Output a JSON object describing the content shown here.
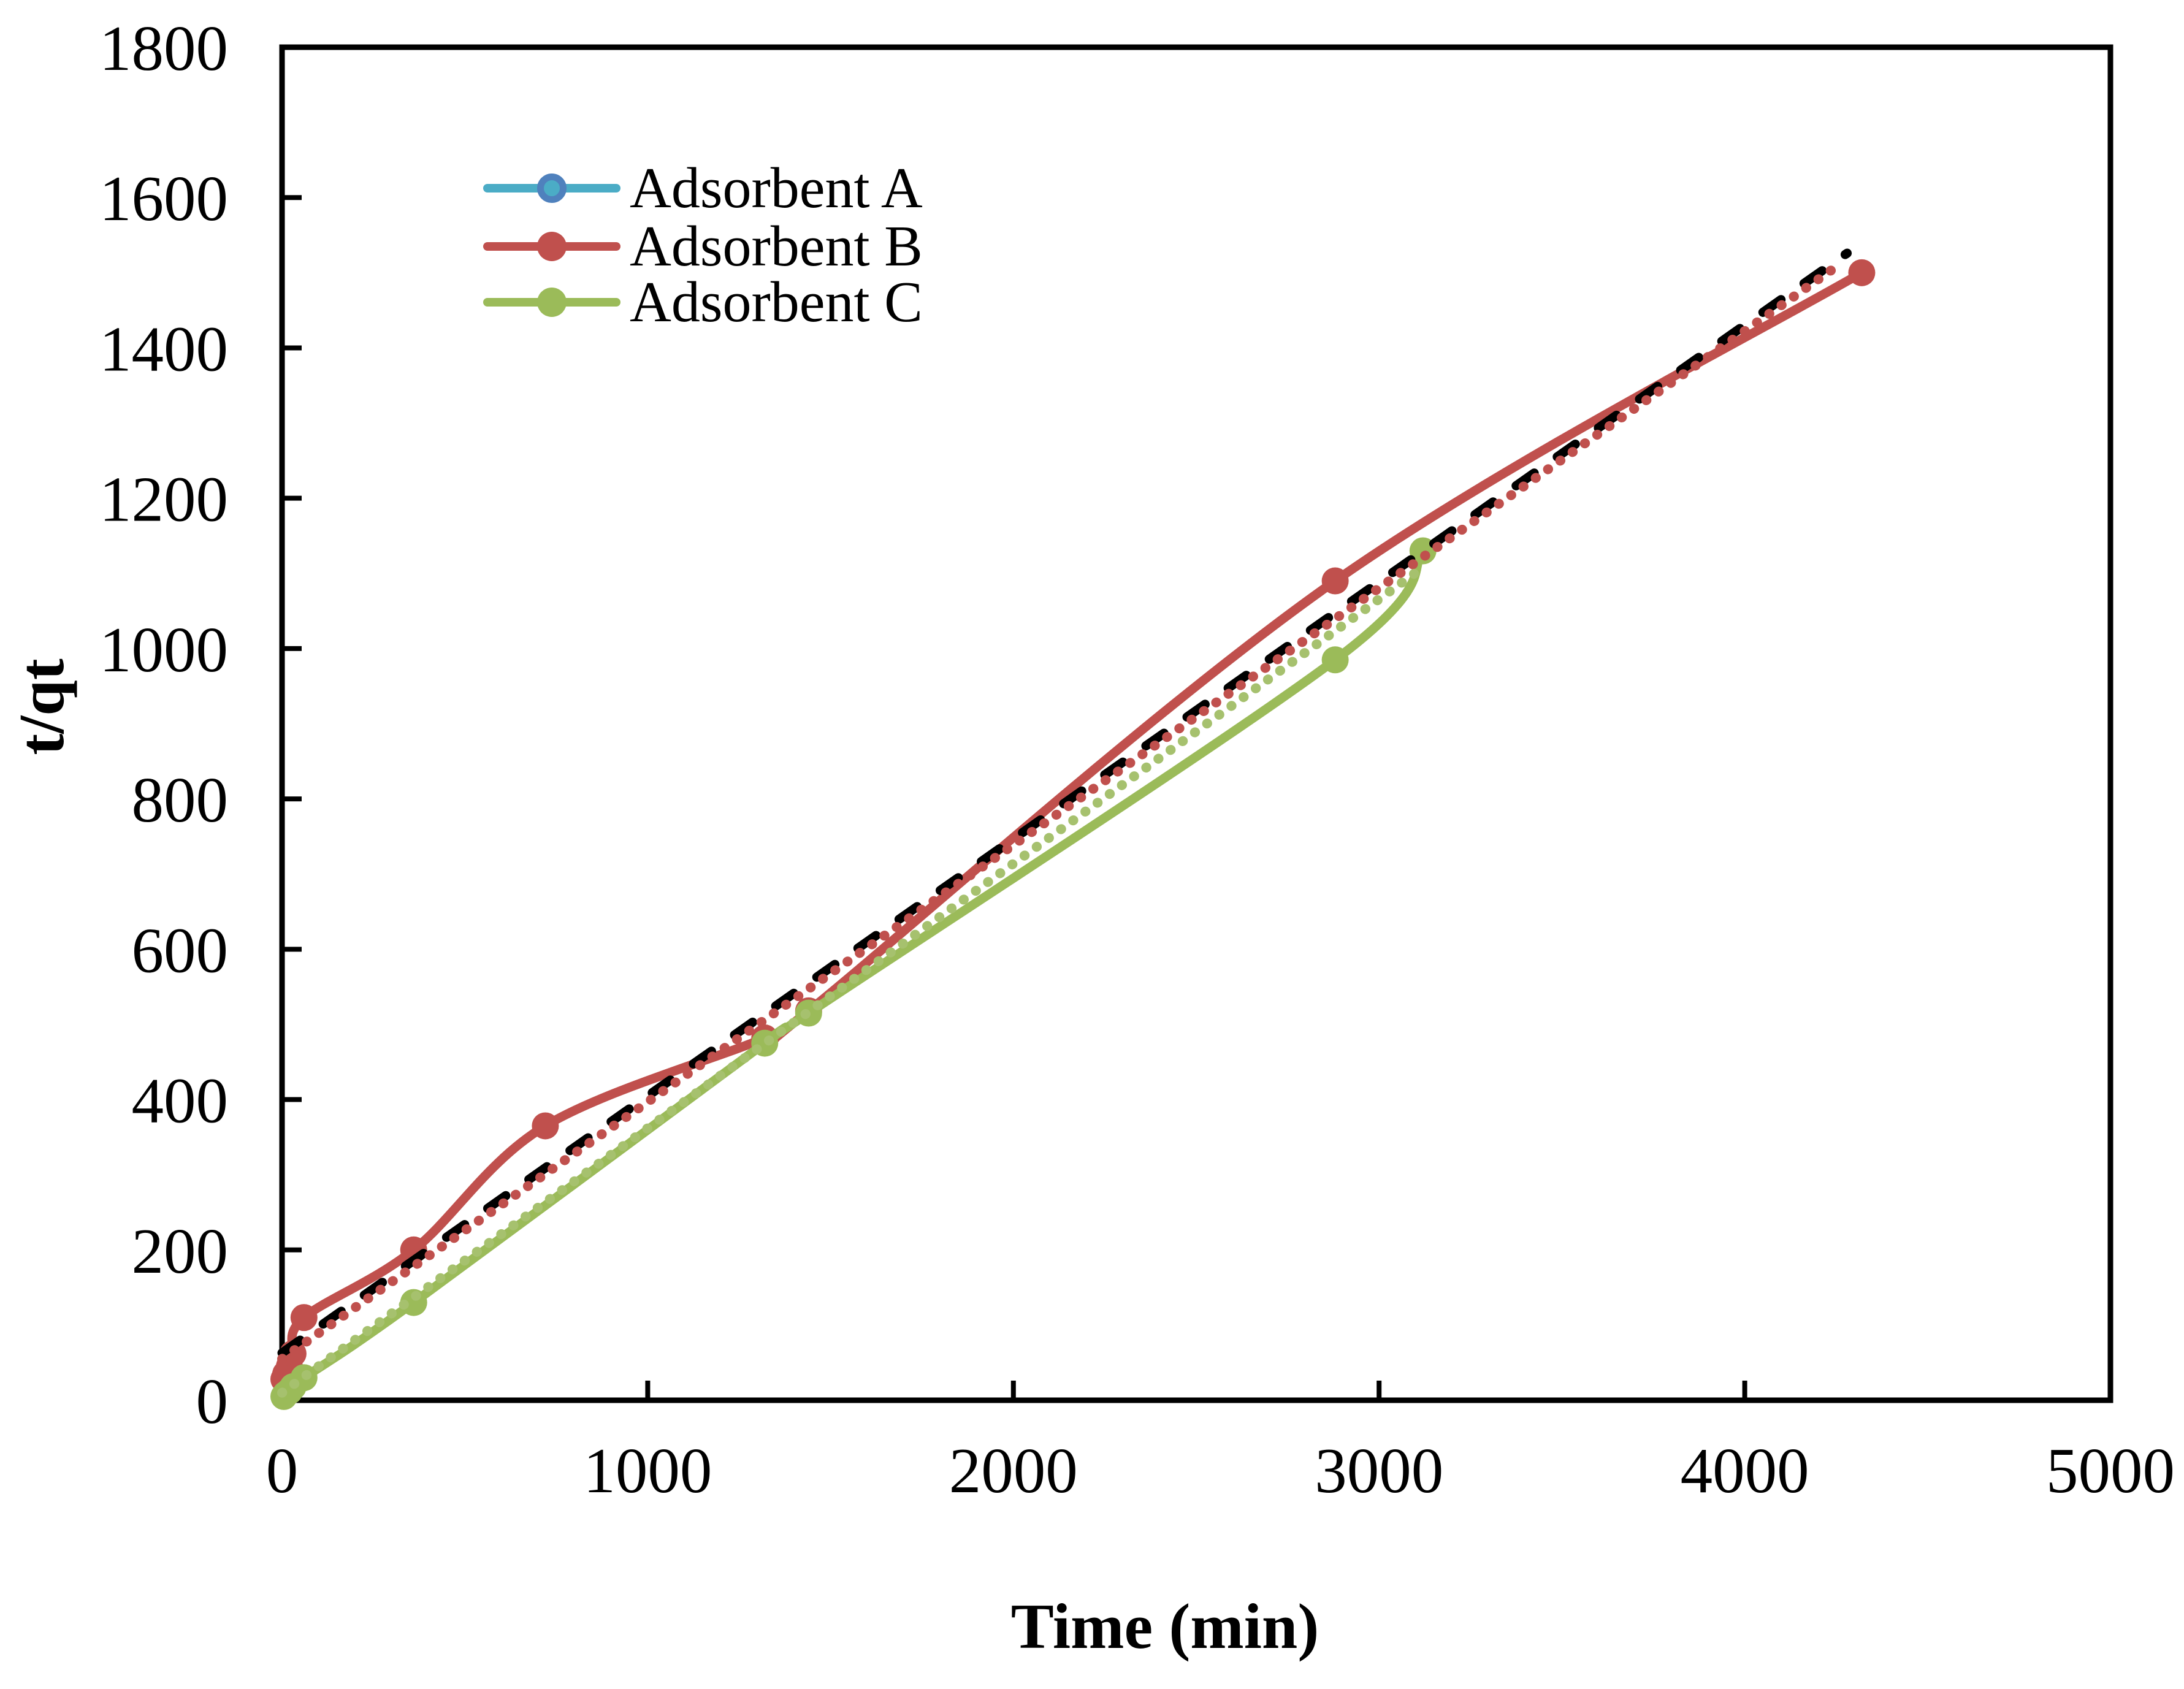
{
  "chart_data": {
    "type": "line",
    "title": "",
    "xlabel": "Time (min)",
    "ylabel": "t/qt",
    "xlim": [
      0,
      5000
    ],
    "ylim": [
      0,
      1800
    ],
    "xticks": [
      0,
      1000,
      2000,
      3000,
      4000,
      5000
    ],
    "yticks": [
      0,
      200,
      400,
      600,
      800,
      1000,
      1200,
      1400,
      1600,
      1800
    ],
    "grid": false,
    "legend_position": "upper-left-inside",
    "frame": true,
    "tick_style": "inside",
    "series": [
      {
        "name": "Adsorbent A",
        "type": "smooth-line-markers",
        "line_color": "#4BACC6",
        "marker_fill": "#4BACC6",
        "marker_edge": "#4F81BD",
        "visible_in_plot": false,
        "x": [
          5,
          10,
          20,
          30,
          60,
          360,
          720,
          1320,
          1440,
          2880,
          4320
        ],
        "y": [
          28,
          35,
          45,
          62,
          110,
          200,
          365,
          482,
          518,
          1090,
          1500
        ]
      },
      {
        "name": "Adsorbent B",
        "type": "smooth-line-markers",
        "line_color": "#C0504D",
        "marker_fill": "#C0504D",
        "marker_edge": "",
        "visible_in_plot": true,
        "x": [
          5,
          10,
          20,
          30,
          60,
          360,
          720,
          1320,
          1440,
          2880,
          4320
        ],
        "y": [
          28,
          35,
          45,
          62,
          110,
          200,
          365,
          482,
          518,
          1090,
          1500
        ]
      },
      {
        "name": "Adsorbent C",
        "type": "smooth-line-markers",
        "line_color": "#9BBB59",
        "marker_fill": "#9BBB59",
        "marker_edge": "",
        "visible_in_plot": true,
        "x": [
          5,
          10,
          20,
          30,
          60,
          360,
          1320,
          1440,
          2880,
          3120
        ],
        "y": [
          5,
          8,
          12,
          18,
          30,
          130,
          475,
          515,
          985,
          1130
        ]
      }
    ],
    "trendlines": [
      {
        "series": "Adsorbent A",
        "style": "dashed",
        "color": "#000000",
        "x1": 0,
        "y1": 63,
        "x2": 4280,
        "y2": 1526
      },
      {
        "series": "Adsorbent B",
        "style": "dotted",
        "color": "#C0504D",
        "x1": 0,
        "y1": 55,
        "x2": 4265,
        "y2": 1513
      },
      {
        "series": "Adsorbent C",
        "style": "dotted",
        "color": "#A6C16E",
        "x1": 0,
        "y1": 10,
        "x2": 3120,
        "y2": 1108
      }
    ],
    "axis_color": "#000000",
    "background_color": "#FFFFFF"
  }
}
